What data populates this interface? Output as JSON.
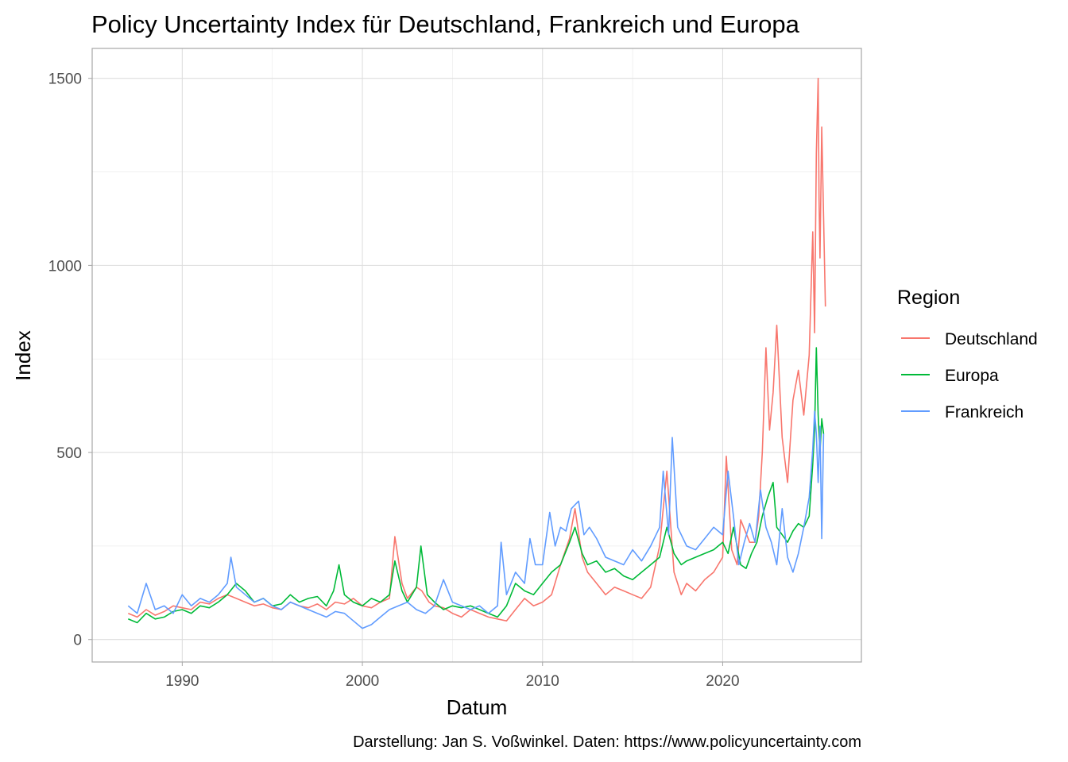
{
  "chart_data": {
    "type": "line",
    "title": "Policy Uncertainty Index für Deutschland, Frankreich und Europa",
    "xlabel": "Datum",
    "ylabel": "Index",
    "caption": "Darstellung: Jan S. Voßwinkel. Daten: https://www.policyuncertainty.com",
    "legend_title": "Region",
    "legend_position": "right",
    "grid": true,
    "xlim": [
      1985.0,
      2027.7
    ],
    "ylim": [
      -60,
      1580
    ],
    "x_ticks": [
      1990,
      2000,
      2010,
      2020
    ],
    "x_minor_ticks": [
      1995,
      2005,
      2015
    ],
    "y_ticks": [
      0,
      500,
      1000,
      1500
    ],
    "y_minor_ticks": [
      250,
      750,
      1250
    ],
    "series": [
      {
        "name": "Deutschland",
        "color": "#F8766D",
        "x": [
          1987.0,
          1987.5,
          1988.0,
          1988.5,
          1989.0,
          1989.5,
          1990.0,
          1990.5,
          1991.0,
          1991.5,
          1992.0,
          1992.5,
          1993.0,
          1993.5,
          1994.0,
          1994.5,
          1995.0,
          1995.5,
          1996.0,
          1996.5,
          1997.0,
          1997.5,
          1998.0,
          1998.5,
          1999.0,
          1999.5,
          2000.0,
          2000.5,
          2001.0,
          2001.5,
          2001.8,
          2002.2,
          2002.5,
          2003.0,
          2003.3,
          2003.7,
          2004.0,
          2004.5,
          2005.0,
          2005.5,
          2006.0,
          2006.5,
          2007.0,
          2007.5,
          2008.0,
          2008.5,
          2009.0,
          2009.5,
          2010.0,
          2010.5,
          2011.0,
          2011.5,
          2011.8,
          2012.2,
          2012.5,
          2013.0,
          2013.5,
          2014.0,
          2014.5,
          2015.0,
          2015.5,
          2016.0,
          2016.5,
          2016.9,
          2017.3,
          2017.7,
          2018.0,
          2018.5,
          2019.0,
          2019.5,
          2020.0,
          2020.2,
          2020.5,
          2020.8,
          2021.0,
          2021.5,
          2021.8,
          2022.0,
          2022.2,
          2022.4,
          2022.6,
          2022.8,
          2023.0,
          2023.3,
          2023.6,
          2023.9,
          2024.2,
          2024.5,
          2024.8,
          2025.0,
          2025.1,
          2025.2,
          2025.3,
          2025.35,
          2025.4,
          2025.5,
          2025.6,
          2025.7
        ],
        "values": [
          70,
          60,
          80,
          65,
          75,
          90,
          85,
          80,
          100,
          95,
          110,
          120,
          110,
          100,
          90,
          95,
          85,
          80,
          100,
          90,
          85,
          95,
          80,
          100,
          95,
          110,
          90,
          85,
          100,
          110,
          275,
          150,
          110,
          140,
          130,
          100,
          90,
          85,
          70,
          60,
          80,
          70,
          60,
          55,
          50,
          80,
          110,
          90,
          100,
          120,
          200,
          270,
          350,
          220,
          180,
          150,
          120,
          140,
          130,
          120,
          110,
          140,
          250,
          450,
          180,
          120,
          150,
          130,
          160,
          180,
          220,
          490,
          240,
          200,
          320,
          260,
          260,
          330,
          500,
          780,
          560,
          660,
          840,
          540,
          420,
          640,
          720,
          600,
          760,
          1090,
          820,
          1300,
          1500,
          1180,
          1020,
          1370,
          1130,
          890
        ]
      },
      {
        "name": "Europa",
        "color": "#00BA38",
        "x": [
          1987.0,
          1987.5,
          1988.0,
          1988.5,
          1989.0,
          1989.5,
          1990.0,
          1990.5,
          1991.0,
          1991.5,
          1992.0,
          1992.5,
          1993.0,
          1993.5,
          1994.0,
          1994.5,
          1995.0,
          1995.5,
          1996.0,
          1996.5,
          1997.0,
          1997.5,
          1998.0,
          1998.4,
          1998.7,
          1999.0,
          1999.5,
          2000.0,
          2000.5,
          2001.0,
          2001.5,
          2001.8,
          2002.2,
          2002.5,
          2003.0,
          2003.25,
          2003.6,
          2004.0,
          2004.5,
          2005.0,
          2005.5,
          2006.0,
          2006.5,
          2007.0,
          2007.5,
          2008.0,
          2008.5,
          2009.0,
          2009.5,
          2010.0,
          2010.5,
          2011.0,
          2011.5,
          2011.8,
          2012.2,
          2012.5,
          2013.0,
          2013.5,
          2014.0,
          2014.5,
          2015.0,
          2015.5,
          2016.0,
          2016.5,
          2016.9,
          2017.3,
          2017.7,
          2018.0,
          2018.5,
          2019.0,
          2019.5,
          2020.0,
          2020.3,
          2020.6,
          2021.0,
          2021.3,
          2021.6,
          2021.9,
          2022.2,
          2022.5,
          2022.8,
          2023.0,
          2023.3,
          2023.6,
          2023.9,
          2024.2,
          2024.5,
          2024.8,
          2025.0,
          2025.1,
          2025.2,
          2025.3,
          2025.4,
          2025.5,
          2025.6
        ],
        "values": [
          55,
          45,
          70,
          55,
          60,
          75,
          80,
          70,
          90,
          85,
          100,
          120,
          150,
          130,
          100,
          110,
          90,
          95,
          120,
          100,
          110,
          115,
          90,
          130,
          200,
          120,
          100,
          90,
          110,
          100,
          120,
          210,
          130,
          100,
          140,
          250,
          120,
          100,
          80,
          90,
          85,
          90,
          80,
          70,
          60,
          90,
          150,
          130,
          120,
          150,
          180,
          200,
          260,
          300,
          230,
          200,
          210,
          180,
          190,
          170,
          160,
          180,
          200,
          220,
          300,
          230,
          200,
          210,
          220,
          230,
          240,
          260,
          230,
          300,
          200,
          190,
          230,
          260,
          330,
          380,
          420,
          300,
          280,
          260,
          290,
          310,
          300,
          330,
          470,
          560,
          780,
          600,
          500,
          590,
          550
        ]
      },
      {
        "name": "Frankreich",
        "color": "#619CFF",
        "x": [
          1987.0,
          1987.5,
          1988.0,
          1988.5,
          1989.0,
          1989.5,
          1990.0,
          1990.5,
          1991.0,
          1991.5,
          1992.0,
          1992.5,
          1992.7,
          1993.0,
          1993.5,
          1994.0,
          1994.5,
          1995.0,
          1995.5,
          1996.0,
          1996.5,
          1997.0,
          1997.5,
          1998.0,
          1998.5,
          1999.0,
          1999.5,
          2000.0,
          2000.5,
          2001.0,
          2001.5,
          2002.0,
          2002.5,
          2003.0,
          2003.5,
          2004.0,
          2004.5,
          2005.0,
          2005.5,
          2006.0,
          2006.5,
          2007.0,
          2007.5,
          2007.7,
          2008.0,
          2008.5,
          2009.0,
          2009.3,
          2009.6,
          2010.0,
          2010.4,
          2010.7,
          2011.0,
          2011.3,
          2011.6,
          2012.0,
          2012.3,
          2012.6,
          2013.0,
          2013.5,
          2014.0,
          2014.5,
          2015.0,
          2015.5,
          2016.0,
          2016.5,
          2016.7,
          2017.0,
          2017.2,
          2017.5,
          2018.0,
          2018.5,
          2019.0,
          2019.5,
          2020.0,
          2020.3,
          2020.6,
          2020.9,
          2021.2,
          2021.5,
          2021.8,
          2022.1,
          2022.4,
          2022.7,
          2023.0,
          2023.3,
          2023.6,
          2023.9,
          2024.2,
          2024.5,
          2024.8,
          2025.0,
          2025.1,
          2025.2,
          2025.3,
          2025.4,
          2025.5,
          2025.6
        ],
        "values": [
          90,
          70,
          150,
          80,
          90,
          70,
          120,
          90,
          110,
          100,
          120,
          150,
          220,
          140,
          120,
          100,
          110,
          90,
          80,
          100,
          90,
          80,
          70,
          60,
          75,
          70,
          50,
          30,
          40,
          60,
          80,
          90,
          100,
          80,
          70,
          90,
          160,
          100,
          90,
          80,
          90,
          70,
          90,
          260,
          120,
          180,
          150,
          270,
          200,
          200,
          340,
          250,
          300,
          290,
          350,
          370,
          280,
          300,
          270,
          220,
          210,
          200,
          240,
          210,
          250,
          300,
          450,
          280,
          540,
          300,
          250,
          240,
          270,
          300,
          280,
          450,
          330,
          200,
          260,
          310,
          260,
          400,
          300,
          260,
          200,
          350,
          220,
          180,
          230,
          300,
          380,
          510,
          610,
          550,
          420,
          570,
          270,
          550
        ]
      }
    ]
  }
}
